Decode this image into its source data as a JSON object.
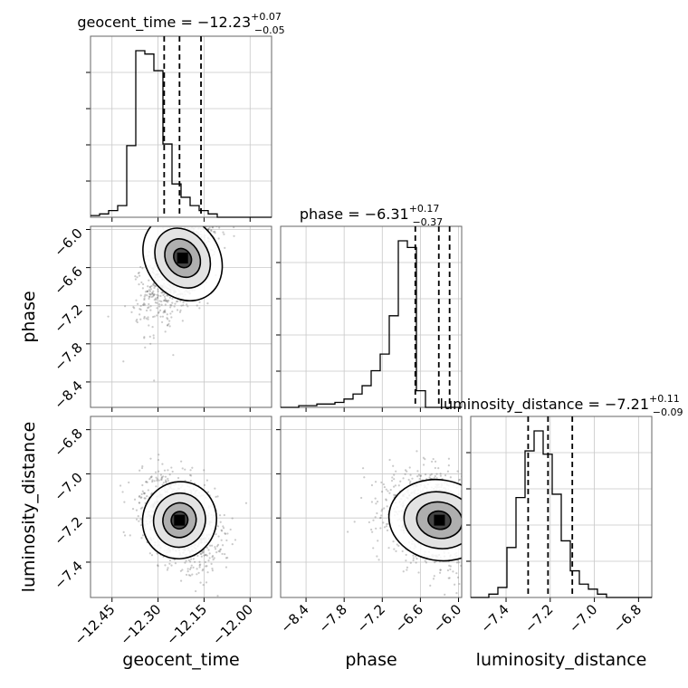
{
  "chart_data": {
    "type": "corner",
    "params": [
      {
        "name": "geocent_time",
        "range": [
          -12.52,
          -11.93
        ],
        "ticks": [
          -12.45,
          -12.3,
          -12.15,
          -12.0
        ],
        "tick_labels": [
          "−12.45",
          "−12.30",
          "−12.15",
          "−12.00"
        ]
      },
      {
        "name": "phase",
        "range": [
          -8.8,
          -5.95
        ],
        "ticks": [
          -8.4,
          -7.8,
          -7.2,
          -6.6,
          -6.0
        ],
        "tick_labels": [
          "−8.4",
          "−7.8",
          "−7.2",
          "−6.6",
          "−6.0"
        ]
      },
      {
        "name": "luminosity_distance",
        "range": [
          -7.56,
          -6.74
        ],
        "ticks": [
          -7.4,
          -7.2,
          -7.0,
          -6.8
        ],
        "tick_labels": [
          "−7.4",
          "−7.2",
          "−7.0",
          "−6.8"
        ]
      }
    ],
    "titles": [
      {
        "name": "geocent_time",
        "median": "−12.23",
        "plus": "+0.07",
        "minus": "−0.05"
      },
      {
        "name": "phase",
        "median": "−6.31",
        "plus": "+0.17",
        "minus": "−0.37"
      },
      {
        "name": "luminosity_distance",
        "median": "−7.21",
        "plus": "+0.11",
        "minus": "−0.09"
      }
    ],
    "quantiles": [
      [
        -12.28,
        -12.23,
        -12.16
      ],
      [
        -6.68,
        -6.31,
        -6.14
      ],
      [
        -7.3,
        -7.21,
        -7.1
      ]
    ],
    "histograms": [
      {
        "edges_range": [
          -12.52,
          -11.93
        ],
        "counts": [
          1,
          2,
          4,
          7,
          43,
          100,
          98,
          88,
          44,
          20,
          12,
          7,
          4,
          2,
          0,
          0,
          0,
          0,
          0,
          0
        ]
      },
      {
        "edges_range": [
          -8.8,
          -5.95
        ],
        "counts": [
          0,
          0,
          1,
          1,
          2,
          2,
          3,
          5,
          8,
          13,
          22,
          32,
          55,
          100,
          96,
          10,
          0,
          0,
          0,
          0
        ]
      },
      {
        "edges_range": [
          -7.56,
          -6.74
        ],
        "counts": [
          0,
          0,
          2,
          6,
          30,
          60,
          88,
          100,
          86,
          62,
          34,
          16,
          8,
          5,
          2,
          0,
          0,
          0,
          0,
          0
        ]
      }
    ],
    "scatter_2d": [
      {
        "x": "geocent_time",
        "y": "phase",
        "mean": [
          -12.22,
          -6.45
        ],
        "std": [
          0.06,
          0.45
        ],
        "corr": 0.6
      },
      {
        "x": "geocent_time",
        "y": "luminosity_distance",
        "mean": [
          -12.23,
          -7.21
        ],
        "std": [
          0.06,
          0.1
        ],
        "corr": -0.35
      },
      {
        "x": "phase",
        "y": "luminosity_distance",
        "mean": [
          -6.3,
          -7.21
        ],
        "std": [
          0.4,
          0.1
        ],
        "corr": -0.25
      }
    ],
    "grid": true
  }
}
